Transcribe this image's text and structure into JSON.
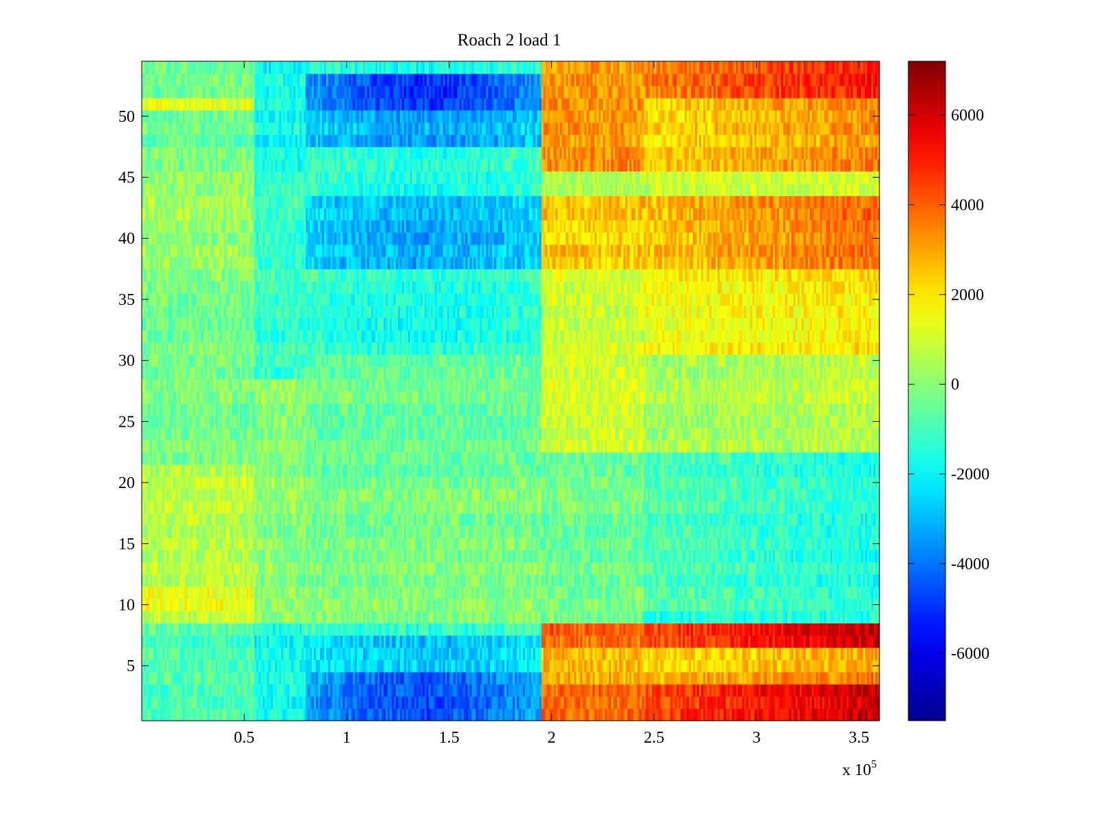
{
  "chart_data": {
    "type": "heatmap",
    "title": "Roach 2 load 1",
    "xlabel": "",
    "ylabel": "",
    "x_exponent_label": {
      "base": "x 10",
      "exponent": "5"
    },
    "xlim": [
      0,
      3.6
    ],
    "ylim": [
      0.5,
      54.5
    ],
    "x_ticks": [
      0.5,
      1,
      1.5,
      2,
      2.5,
      3,
      3.5
    ],
    "x_tick_labels": [
      "0.5",
      "1",
      "1.5",
      "2",
      "2.5",
      "3",
      "3.5"
    ],
    "y_ticks": [
      5,
      10,
      15,
      20,
      25,
      30,
      35,
      40,
      45,
      50
    ],
    "y_tick_labels": [
      "5",
      "10",
      "15",
      "20",
      "25",
      "30",
      "35",
      "40",
      "45",
      "50"
    ],
    "rows": 54,
    "columns": 360,
    "step_x": 1.95,
    "colorbar": {
      "colormap": "jet",
      "range": [
        -7500,
        7200
      ],
      "ticks": [
        -6000,
        -4000,
        -2000,
        0,
        2000,
        4000,
        6000
      ],
      "tick_labels": [
        "-6000",
        "-4000",
        "-2000",
        "0",
        "2000",
        "4000",
        "6000"
      ],
      "colors": [
        "#00008f",
        "#0000ff",
        "#00ffff",
        "#ffff00",
        "#ff0000",
        "#800000"
      ]
    },
    "segments": [
      {
        "x_range": [
          0,
          0.55
        ],
        "description": "near-zero values, mildly positive in rows 10-20"
      },
      {
        "x_range": [
          0.55,
          0.8
        ],
        "description": "slightly negative"
      },
      {
        "x_range": [
          0.8,
          1.95
        ],
        "description": "negative; strongest (about -5000) in rows 1-5 and 48-53"
      },
      {
        "x_range": [
          1.95,
          2.45
        ],
        "description": "positive; about 3000-4000 in rows 1-8 and 46-54"
      },
      {
        "x_range": [
          2.45,
          3.6
        ],
        "description": "positive in rows 1-8 and 36-54 (up to ~6000); negative in rows 9-22"
      }
    ],
    "grid": false,
    "legend": "colorbar-right"
  }
}
